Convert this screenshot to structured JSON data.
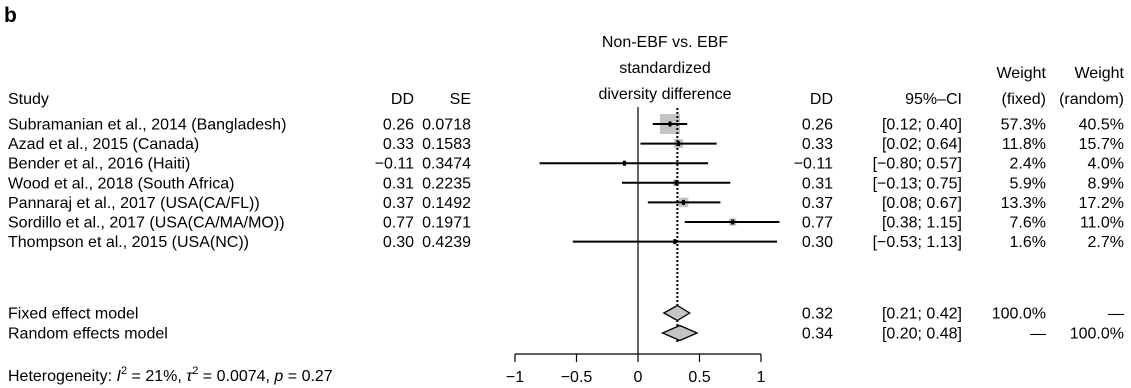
{
  "panel_label": "b",
  "headers": {
    "study": "Study",
    "dd_left": "DD",
    "se": "SE",
    "plot_title": [
      "Non-EBF vs. EBF",
      "standardized",
      "diversity difference"
    ],
    "dd_right": "DD",
    "ci": "95%–CI",
    "weight_fixed": [
      "Weight",
      "(fixed)"
    ],
    "weight_random": [
      "Weight",
      "(random)"
    ]
  },
  "heterogeneity": {
    "prefix": "Heterogeneity: ",
    "i2": "21%",
    "tau2": "0.0074",
    "p": "0.27"
  },
  "chart_data": {
    "type": "forest",
    "x_axis": {
      "range": [
        -1,
        1
      ],
      "ticks": [
        -1,
        -0.5,
        0,
        0.5,
        1
      ],
      "tick_labels": [
        "−1",
        "−0.5",
        "0",
        "0.5",
        "1"
      ],
      "null_line": 0
    },
    "studies": [
      {
        "name": "Subramanian et al., 2014 (Bangladesh)",
        "dd": 0.26,
        "dd_text": "0.26",
        "se_text": "0.0718",
        "ci_low": 0.12,
        "ci_high": 0.4,
        "ci_text": "[0.12; 0.40]",
        "weight_fixed": 57.3,
        "weight_fixed_text": "57.3%",
        "weight_random_text": "40.5%"
      },
      {
        "name": "Azad et al., 2015 (Canada)",
        "dd": 0.33,
        "dd_text": "0.33",
        "se_text": "0.1583",
        "ci_low": 0.02,
        "ci_high": 0.64,
        "ci_text": "[0.02; 0.64]",
        "weight_fixed": 11.8,
        "weight_fixed_text": "11.8%",
        "weight_random_text": "15.7%"
      },
      {
        "name": "Bender et al., 2016 (Haiti)",
        "dd": -0.11,
        "dd_text": "−0.11",
        "se_text": "0.3474",
        "ci_low": -0.8,
        "ci_high": 0.57,
        "ci_text": "[−0.80; 0.57]",
        "weight_fixed": 2.4,
        "weight_fixed_text": "2.4%",
        "weight_random_text": "4.0%"
      },
      {
        "name": "Wood et al., 2018 (South Africa)",
        "dd": 0.31,
        "dd_text": "0.31",
        "se_text": "0.2235",
        "ci_low": -0.13,
        "ci_high": 0.75,
        "ci_text": "[−0.13; 0.75]",
        "weight_fixed": 5.9,
        "weight_fixed_text": "5.9%",
        "weight_random_text": "8.9%"
      },
      {
        "name": "Pannaraj et al., 2017 (USA(CA/FL))",
        "dd": 0.37,
        "dd_text": "0.37",
        "se_text": "0.1492",
        "ci_low": 0.08,
        "ci_high": 0.67,
        "ci_text": "[0.08; 0.67]",
        "weight_fixed": 13.3,
        "weight_fixed_text": "13.3%",
        "weight_random_text": "17.2%"
      },
      {
        "name": "Sordillo et al., 2017 (USA(CA/MA/MO))",
        "dd": 0.77,
        "dd_text": "0.77",
        "se_text": "0.1971",
        "ci_low": 0.38,
        "ci_high": 1.15,
        "ci_text": "[0.38; 1.15]",
        "weight_fixed": 7.6,
        "weight_fixed_text": "7.6%",
        "weight_random_text": "11.0%"
      },
      {
        "name": "Thompson et al., 2015 (USA(NC))",
        "dd": 0.3,
        "dd_text": "0.30",
        "se_text": "0.4239",
        "ci_low": -0.53,
        "ci_high": 1.13,
        "ci_text": "[−0.53; 1.13]",
        "weight_fixed": 1.6,
        "weight_fixed_text": "1.6%",
        "weight_random_text": "2.7%"
      }
    ],
    "pooled": [
      {
        "name": "Fixed effect model",
        "dd": 0.32,
        "dd_text": "0.32",
        "ci_low": 0.21,
        "ci_high": 0.42,
        "ci_text": "[0.21; 0.42]",
        "weight_fixed_text": "100.0%",
        "weight_random_text": "—"
      },
      {
        "name": "Random effects model",
        "dd": 0.34,
        "dd_text": "0.34",
        "ci_low": 0.2,
        "ci_high": 0.48,
        "ci_text": "[0.20; 0.48]",
        "weight_fixed_text": "—",
        "weight_random_text": "100.0%"
      }
    ],
    "colors": {
      "box": "#c4c4c4",
      "diamond_fill": "#c4c4c4",
      "line": "#000000"
    }
  }
}
